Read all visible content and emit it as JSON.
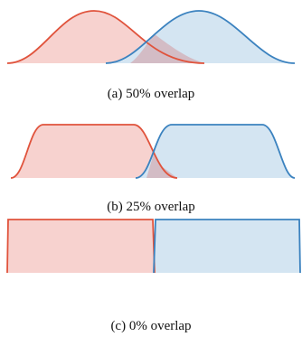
{
  "colors": {
    "red": "#e0533c",
    "red_fill": "#f7d2cf",
    "blue": "#3b82bf",
    "blue_fill": "#d4e5f2",
    "overlap_fill": "#d3bcc5"
  },
  "panels": [
    {
      "caption": "(a) 50% overlap",
      "overlap_percent": 50
    },
    {
      "caption": "(b) 25% overlap",
      "overlap_percent": 25
    },
    {
      "caption": "(c) 0% overlap",
      "overlap_percent": 0
    }
  ]
}
